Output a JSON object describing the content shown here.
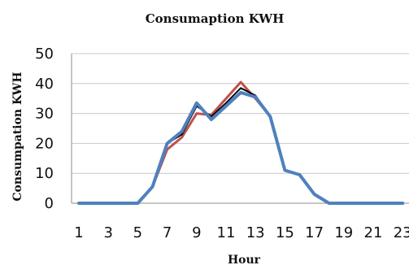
{
  "chart_data": {
    "type": "line",
    "title": "Consumaption KWH",
    "xlabel": "Hour",
    "ylabel": "Consumpation KWH",
    "x": [
      1,
      2,
      3,
      4,
      5,
      6,
      7,
      8,
      9,
      10,
      11,
      12,
      13,
      14,
      15,
      16,
      17,
      18,
      19,
      20,
      21,
      22,
      23
    ],
    "x_tick_labels": [
      "1",
      "3",
      "5",
      "7",
      "9",
      "11",
      "13",
      "15",
      "17",
      "19",
      "21",
      "23"
    ],
    "y_tick_labels": [
      "0",
      "10",
      "20",
      "30",
      "40",
      "50"
    ],
    "ylim": [
      0,
      50
    ],
    "grid": true,
    "legend": "none",
    "series": [
      {
        "color": "#c0504d",
        "values": [
          0,
          0,
          0,
          0,
          0,
          5.5,
          18,
          22,
          30,
          29.5,
          35,
          40.5,
          35,
          29,
          11,
          9.5,
          3,
          0,
          0,
          0,
          0,
          0,
          0
        ]
      },
      {
        "color": "#000000",
        "values": [
          0,
          0,
          0,
          0,
          0,
          5.5,
          20,
          23,
          32.5,
          29,
          33.5,
          38.5,
          36,
          29,
          11,
          9.5,
          3,
          0,
          0,
          0,
          0,
          0,
          0
        ]
      },
      {
        "color": "#4f81bd",
        "values": [
          0,
          0,
          0,
          0,
          0,
          5.5,
          20,
          24,
          33.5,
          28,
          32.5,
          37,
          35.5,
          29,
          11,
          9.5,
          3,
          0,
          0,
          0,
          0,
          0,
          0
        ]
      }
    ]
  }
}
